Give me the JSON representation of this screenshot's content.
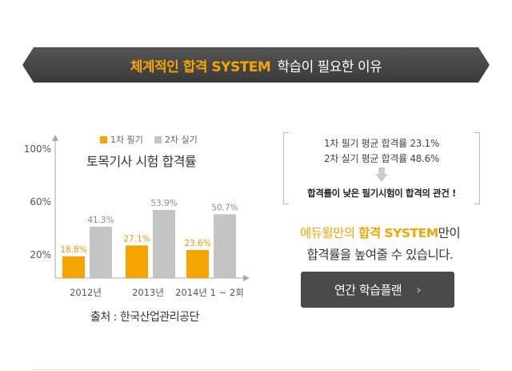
{
  "banner": {
    "highlight": "체계적인 합격 SYSTEM",
    "rest": "학습이 필요한 이유"
  },
  "chart_data": {
    "type": "bar",
    "title": "토목기사 시험 합격률",
    "categories": [
      "2012년",
      "2013년",
      "2014년 1 ~ 2회"
    ],
    "series": [
      {
        "name": "1차 필기",
        "color": "#f6a400",
        "values": [
          18.8,
          27.1,
          23.6
        ],
        "labels": [
          "18.8%",
          "27.1%",
          "23.6%"
        ]
      },
      {
        "name": "2차 실기",
        "color": "#c4c4c4",
        "values": [
          41.3,
          53.9,
          50.7
        ],
        "labels": [
          "41.3%",
          "53.9%",
          "50.7%"
        ]
      }
    ],
    "yticks": [
      "100%",
      "60%",
      "20%"
    ],
    "ylim": [
      0,
      100
    ],
    "legend": "top",
    "source": "출처 : 한국산업관리공단"
  },
  "info": {
    "line1": "1차 필기 평균 합격률 23.1%",
    "line2": "2차 실기 평균 합격률 48.6%",
    "key": "합격률이 낮은 필기시험이 합격의 관건 !"
  },
  "promo": {
    "brand": "에듀윌만의",
    "system": "합격 SYSTEM",
    "tail1": "만이",
    "line2": "합격률을  높여줄 수 있습니다."
  },
  "plan_button": {
    "label": "연간 학습플랜",
    "chevron": "›"
  }
}
